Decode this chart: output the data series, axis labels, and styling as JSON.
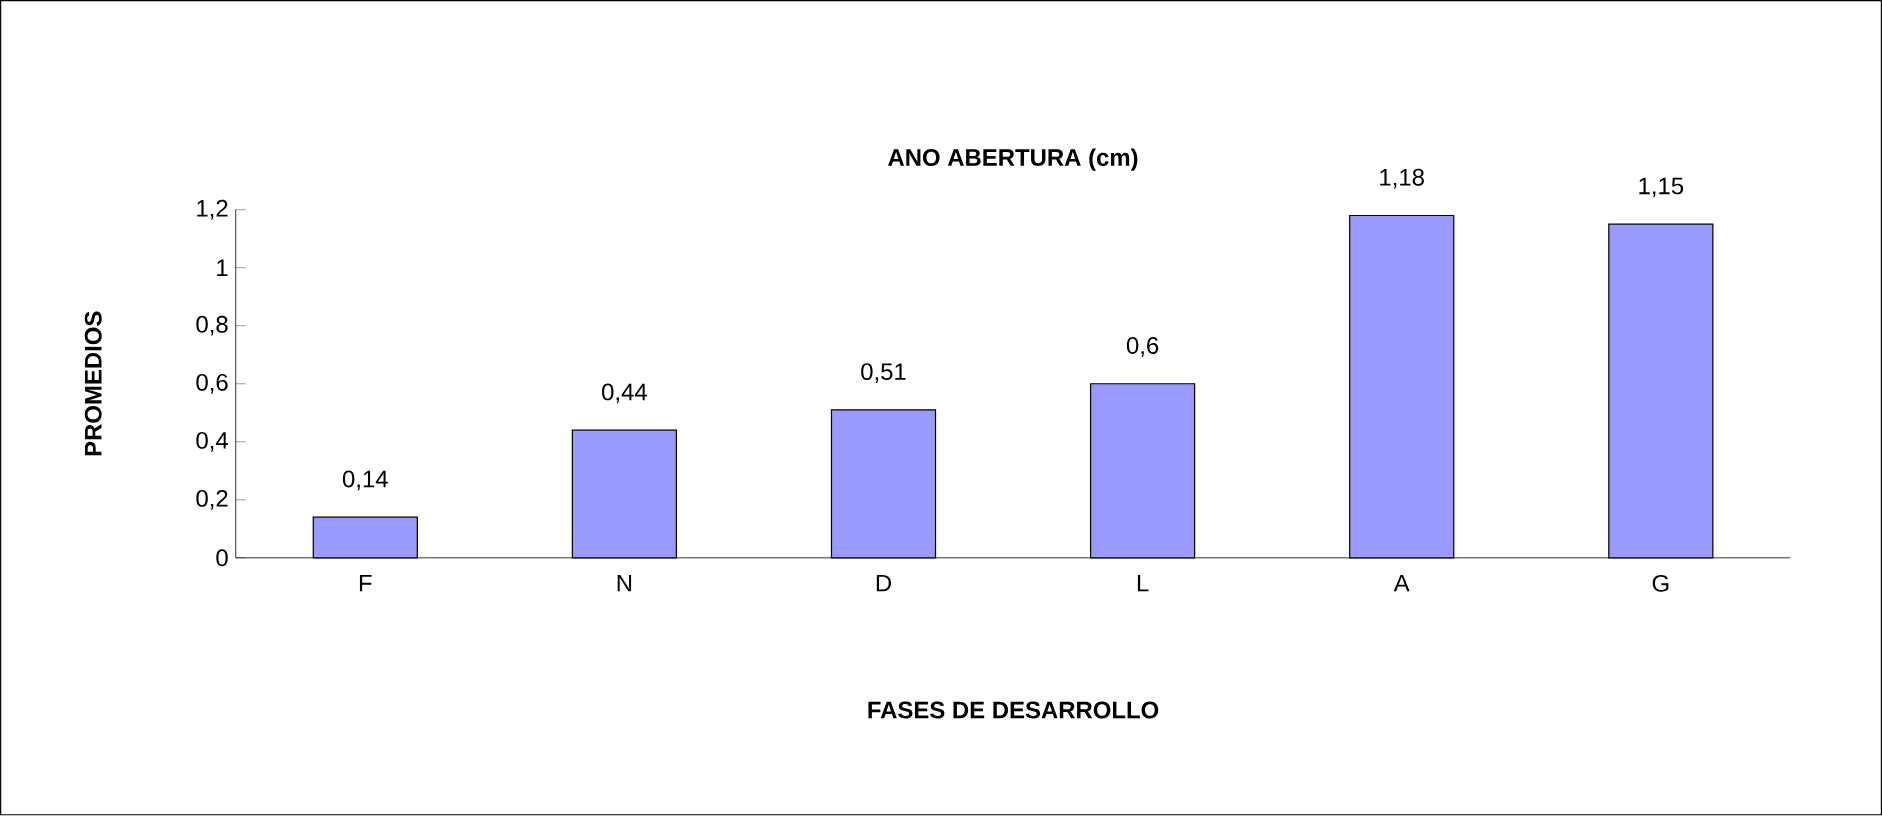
{
  "chart_data": {
    "type": "bar",
    "title": "ANO ABERTURA (cm)",
    "xlabel": "FASES DE DESARROLLO",
    "ylabel": "PROMEDIOS",
    "categories": [
      "F",
      "N",
      "D",
      "L",
      "A",
      "G"
    ],
    "values": [
      0.14,
      0.44,
      0.51,
      0.6,
      1.18,
      1.15
    ],
    "value_labels": [
      "0,14",
      "0,44",
      "0,51",
      "0,6",
      "1,18",
      "1,15"
    ],
    "color": "#9999ff",
    "ylim": [
      0,
      1.2
    ],
    "yticks": [
      0,
      {
        "value": 0.2,
        "label": "0,2"
      },
      {
        "value": 0.4,
        "label": "0,4"
      },
      {
        "value": 0.6,
        "label": "0,6"
      },
      {
        "value": 0.8,
        "label": "0,8"
      },
      1,
      {
        "value": 1.2,
        "label": "1,2"
      }
    ],
    "grid": false
  }
}
